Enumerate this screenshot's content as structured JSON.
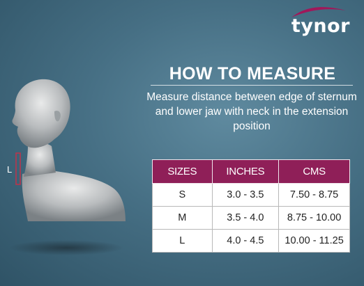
{
  "brand": {
    "name": "tynor",
    "colors": {
      "swoosh": "#a0185a",
      "text": "#ffffff"
    }
  },
  "figure": {
    "marker_label": "L",
    "marker_color": "#c0334a"
  },
  "heading": {
    "title": "HOW TO MEASURE",
    "description": "Measure distance between edge of sternum and lower jaw with neck in the extension position"
  },
  "size_table": {
    "header_color": "#8f1f58",
    "headers": [
      "SIZES",
      "INCHES",
      "CMS"
    ],
    "rows": [
      [
        "S",
        "3.0 - 3.5",
        "7.50 - 8.75"
      ],
      [
        "M",
        "3.5 - 4.0",
        "8.75 - 10.00"
      ],
      [
        "L",
        "4.0 - 4.5",
        "10.00 - 11.25"
      ]
    ]
  }
}
